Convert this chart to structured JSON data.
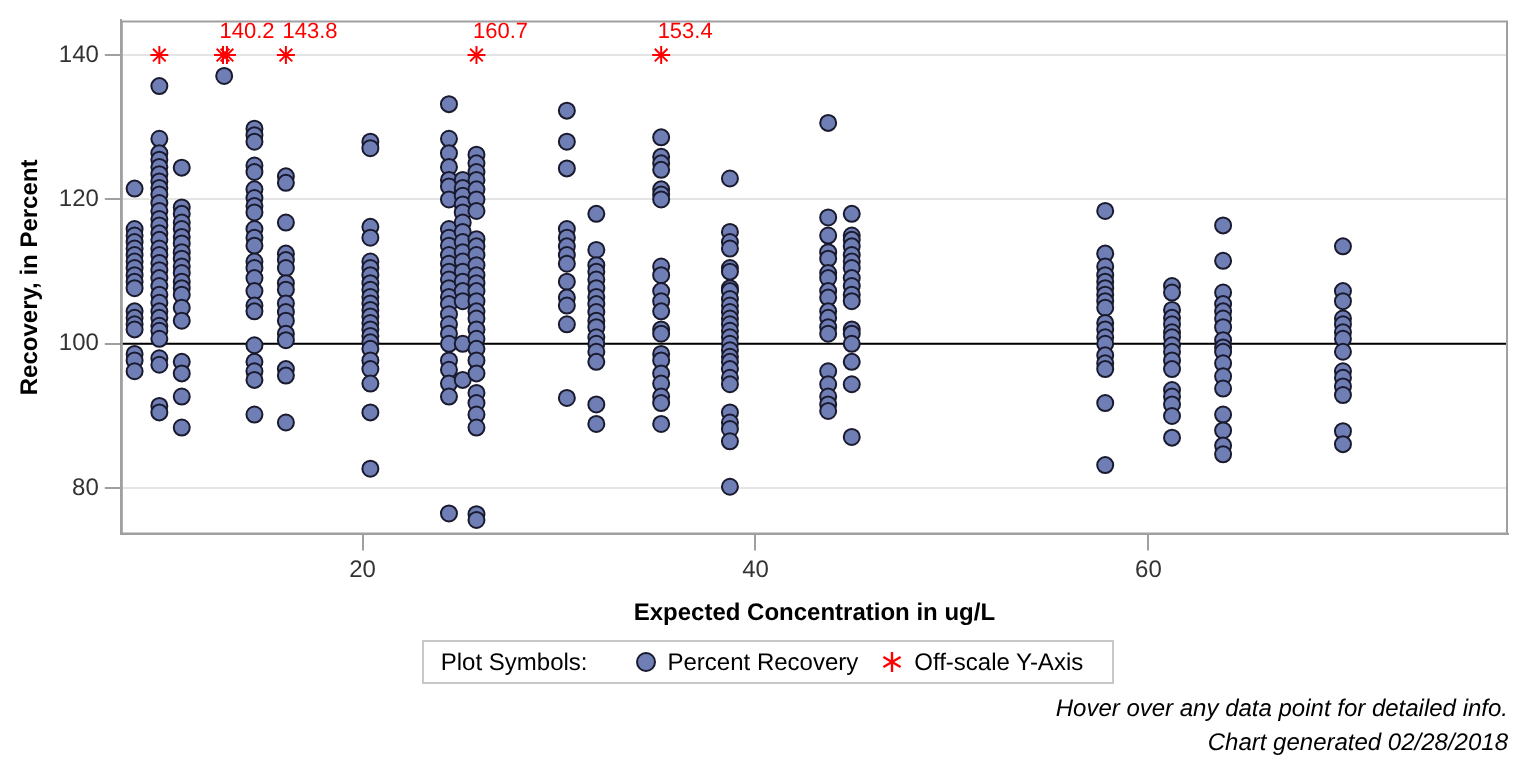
{
  "chart_data": {
    "type": "scatter",
    "xlabel": "Expected Concentration in ug/L",
    "ylabel": "Recovery, in Percent",
    "legend_title": "Plot Symbols:",
    "legend": "bottom",
    "grid": "y",
    "marker": "circle",
    "xlim": [
      7.7,
      78.3
    ],
    "xticks": [
      20,
      40,
      60
    ],
    "ylim": [
      73.6,
      144.8
    ],
    "yticks": [
      80,
      100,
      120,
      140
    ],
    "ref_lines": [
      {
        "axis": "y",
        "value": 100,
        "color": "#000000"
      }
    ],
    "series": [
      {
        "name": "Percent Recovery",
        "color": "#6f7fb5",
        "x": [
          8.4,
          8.4,
          8.4,
          8.4,
          8.4,
          8.4,
          8.4,
          8.4,
          8.4,
          8.4,
          8.4,
          8.4,
          8.4,
          8.4,
          8.4,
          8.4,
          8.4,
          8.4,
          9.66,
          9.66,
          9.66,
          9.66,
          9.66,
          9.66,
          9.66,
          9.66,
          9.66,
          9.66,
          9.66,
          9.66,
          9.66,
          9.66,
          9.66,
          9.66,
          9.66,
          9.66,
          9.66,
          9.66,
          9.66,
          9.66,
          9.66,
          9.66,
          9.66,
          9.66,
          9.66,
          9.66,
          9.66,
          9.66,
          9.66,
          9.66,
          10.8,
          10.8,
          10.8,
          10.8,
          10.8,
          10.8,
          10.8,
          10.8,
          10.8,
          10.8,
          10.8,
          10.8,
          10.8,
          10.8,
          10.8,
          10.8,
          10.8,
          10.8,
          10.8,
          10.8,
          12.96,
          14.5,
          14.5,
          14.5,
          14.5,
          14.5,
          14.5,
          14.5,
          14.5,
          14.5,
          14.5,
          14.5,
          14.5,
          14.5,
          14.5,
          14.5,
          14.5,
          14.5,
          14.5,
          14.5,
          14.5,
          14.5,
          14.5,
          14.5,
          16.1,
          16.1,
          16.1,
          16.1,
          16.1,
          16.1,
          16.1,
          16.1,
          16.1,
          16.1,
          16.1,
          16.1,
          16.1,
          16.1,
          16.1,
          16.1,
          20.4,
          20.4,
          20.4,
          20.4,
          20.4,
          20.4,
          20.4,
          20.4,
          20.4,
          20.4,
          20.4,
          20.4,
          20.4,
          20.4,
          20.4,
          20.4,
          20.4,
          20.4,
          20.4,
          20.4,
          20.4,
          20.4,
          20.4,
          24.4,
          24.4,
          24.4,
          24.4,
          24.4,
          24.4,
          24.4,
          24.4,
          24.4,
          24.4,
          24.4,
          24.4,
          24.4,
          24.4,
          24.4,
          24.4,
          24.4,
          24.4,
          24.4,
          24.4,
          24.4,
          24.4,
          24.4,
          24.4,
          24.4,
          24.4,
          25.1,
          25.1,
          25.1,
          25.1,
          25.1,
          25.1,
          25.1,
          25.1,
          25.1,
          25.1,
          25.1,
          25.1,
          25.1,
          25.1,
          25.1,
          25.1,
          25.8,
          25.8,
          25.8,
          25.8,
          25.8,
          25.8,
          25.8,
          25.8,
          25.8,
          25.8,
          25.8,
          25.8,
          25.8,
          25.8,
          25.8,
          25.8,
          25.8,
          25.8,
          25.8,
          25.8,
          25.8,
          25.8,
          25.8,
          25.8,
          25.8,
          25.8,
          25.8,
          25.8,
          30.4,
          30.4,
          30.4,
          30.4,
          30.4,
          30.4,
          30.4,
          30.4,
          30.4,
          30.4,
          30.4,
          30.4,
          30.4,
          31.9,
          31.9,
          31.9,
          31.9,
          31.9,
          31.9,
          31.9,
          31.9,
          31.9,
          31.9,
          31.9,
          31.9,
          31.9,
          31.9,
          31.9,
          31.9,
          31.9,
          35.2,
          35.2,
          35.2,
          35.2,
          35.2,
          35.2,
          35.2,
          35.2,
          35.2,
          35.2,
          35.2,
          35.2,
          35.2,
          35.2,
          35.2,
          35.2,
          35.2,
          35.2,
          35.2,
          35.2,
          35.2,
          38.7,
          38.7,
          38.7,
          38.7,
          38.7,
          38.7,
          38.7,
          38.7,
          38.7,
          38.7,
          38.7,
          38.7,
          38.7,
          38.7,
          38.7,
          38.7,
          38.7,
          38.7,
          38.7,
          38.7,
          38.7,
          38.7,
          38.7,
          38.7,
          38.7,
          38.7,
          38.7,
          43.7,
          43.7,
          43.7,
          43.7,
          43.7,
          43.7,
          43.7,
          43.7,
          43.7,
          43.7,
          43.7,
          43.7,
          43.7,
          43.7,
          43.7,
          43.7,
          43.7,
          43.7,
          44.9,
          44.9,
          44.9,
          44.9,
          44.9,
          44.9,
          44.9,
          44.9,
          44.9,
          44.9,
          44.9,
          44.9,
          44.9,
          44.9,
          44.9,
          44.9,
          44.9,
          57.8,
          57.8,
          57.8,
          57.8,
          57.8,
          57.8,
          57.8,
          57.8,
          57.8,
          57.8,
          57.8,
          57.8,
          57.8,
          57.8,
          57.8,
          57.8,
          57.8,
          57.8,
          61.2,
          61.2,
          61.2,
          61.2,
          61.2,
          61.2,
          61.2,
          61.2,
          61.2,
          61.2,
          61.2,
          61.2,
          61.2,
          61.2,
          61.2,
          61.2,
          63.8,
          63.8,
          63.8,
          63.8,
          63.8,
          63.8,
          63.8,
          63.8,
          63.8,
          63.8,
          63.8,
          63.8,
          63.8,
          63.8,
          63.8,
          63.8,
          63.8,
          69.9,
          69.9,
          69.9,
          69.9,
          69.9,
          69.9,
          69.9,
          69.9,
          69.9,
          69.9,
          69.9,
          69.9,
          69.9,
          69.9
        ],
        "values": [
          121.5,
          115.9,
          115,
          114.1,
          113.2,
          112.3,
          111.4,
          110.5,
          109.5,
          108.6,
          107.7,
          104.5,
          103.6,
          102.7,
          102,
          98.6,
          97.7,
          96.2,
          135.7,
          128.4,
          126.4,
          125.5,
          124.5,
          123.5,
          122.5,
          121.6,
          120.7,
          119.5,
          118.4,
          117.3,
          116.4,
          115.3,
          114.4,
          113.2,
          112.3,
          111.2,
          110.2,
          109.1,
          108,
          106.8,
          105.7,
          104.5,
          103.6,
          102.5,
          101.8,
          100.7,
          98,
          97.1,
          91.4,
          90.5,
          124.4,
          118.9,
          118,
          116.8,
          115.9,
          114.8,
          113.9,
          112.7,
          111.8,
          110.7,
          109.8,
          108.6,
          107.7,
          106.8,
          105,
          103.2,
          97.5,
          95.9,
          92.7,
          88.4,
          137.1,
          129.8,
          128.9,
          128,
          124.7,
          123.8,
          121.4,
          120.2,
          119.1,
          118.2,
          115.9,
          114.7,
          113.6,
          111.4,
          110.5,
          109.1,
          107.3,
          105.3,
          104.5,
          99.8,
          97.5,
          96.2,
          95,
          90.2,
          123.2,
          122.3,
          116.8,
          112.5,
          111.6,
          110.5,
          108.4,
          107.5,
          105.6,
          104.4,
          103.2,
          101.4,
          100.5,
          96.5,
          95.6,
          89.1,
          128,
          127.1,
          116.2,
          114.7,
          111.4,
          110.5,
          109.5,
          108.4,
          107.5,
          106.5,
          105.6,
          104.7,
          103.8,
          102.9,
          102,
          101.1,
          100.2,
          99.3,
          97.7,
          96.5,
          94.5,
          90.5,
          82.7,
          133.2,
          128.4,
          126.4,
          124.5,
          122.7,
          121.8,
          120,
          115.9,
          114.7,
          113.6,
          112.3,
          111.1,
          110,
          108.9,
          107.7,
          106.5,
          105.5,
          104.1,
          102.7,
          101.4,
          100,
          97.7,
          96.4,
          94.5,
          92.7,
          76.5,
          122.7,
          121.6,
          120.5,
          119.3,
          118.2,
          116.8,
          115.5,
          114.1,
          112.7,
          111.4,
          110,
          108.6,
          107.3,
          105.9,
          100,
          95,
          126.2,
          125,
          123.8,
          122.7,
          121.4,
          120,
          118.4,
          114.5,
          113.5,
          112.3,
          110.9,
          109.5,
          108.4,
          107.3,
          105.9,
          104.5,
          103.5,
          102,
          100.7,
          99.3,
          97.7,
          95.9,
          93.2,
          91.8,
          90.2,
          88.4,
          76.4,
          75.6,
          132.3,
          128,
          124.3,
          115.9,
          114.7,
          113.5,
          112.3,
          111.1,
          108.6,
          106.4,
          105.3,
          102.7,
          92.5,
          118,
          113,
          110.9,
          110,
          108.9,
          107.7,
          106.5,
          105.5,
          104.4,
          103.2,
          102.3,
          100.9,
          100,
          98.9,
          97.5,
          91.6,
          88.9,
          128.6,
          125.9,
          125,
          124.1,
          121.4,
          120.7,
          120,
          110.7,
          109.5,
          107.3,
          105.9,
          104.5,
          102,
          101.4,
          98.6,
          97.7,
          95.9,
          94.5,
          92.7,
          91.8,
          88.9,
          122.9,
          115.5,
          114.1,
          113.2,
          110.5,
          110,
          107.7,
          107.3,
          106.2,
          105.3,
          104.4,
          103.5,
          102.7,
          101.8,
          100.9,
          100,
          99.1,
          98.2,
          97.5,
          96.5,
          95.3,
          94.4,
          90.5,
          89.1,
          88.2,
          86.5,
          80.2,
          130.6,
          117.5,
          115,
          112.7,
          111.8,
          109.8,
          109.1,
          107.3,
          106.4,
          104.5,
          103.6,
          102.3,
          101.4,
          96.2,
          94.4,
          92.7,
          91.6,
          90.7,
          118,
          115,
          114.4,
          113.5,
          112.3,
          111.4,
          110.5,
          109.1,
          108,
          106.8,
          105.9,
          102,
          101.4,
          100,
          97.5,
          94.4,
          87.1,
          118.4,
          112.5,
          110.7,
          109.5,
          108.6,
          107.7,
          106.8,
          105.9,
          105,
          102.9,
          102,
          100.9,
          100,
          98.4,
          97.3,
          96.5,
          91.8,
          83.2,
          108,
          107.1,
          104.7,
          103.6,
          102.7,
          101.6,
          100.9,
          99.8,
          98.9,
          97.7,
          96.5,
          93.6,
          92.7,
          91.6,
          90,
          87,
          116.4,
          111.5,
          107.1,
          105.5,
          104.5,
          103.5,
          102.3,
          100.5,
          99.5,
          98.9,
          97.3,
          95.5,
          93.8,
          90.2,
          88,
          85.9,
          84.7,
          113.5,
          107.3,
          105.9,
          103.5,
          102.7,
          101.6,
          100.7,
          98.9,
          96.2,
          95.3,
          94.1,
          92.9,
          87.9,
          86.1
        ]
      },
      {
        "name": "Off-scale Y-Axis",
        "color": "#ff0000",
        "marker": "cross",
        "x": [
          9.66,
          12.9,
          13.1,
          16.1,
          25.8,
          35.2
        ],
        "values": [
          140,
          140,
          140,
          140,
          140,
          140
        ]
      }
    ],
    "annotations": [
      {
        "text": "140.2",
        "x": 12.9,
        "y": 140
      },
      {
        "text": "143.8",
        "x": 16.1,
        "y": 140
      },
      {
        "text": "160.7",
        "x": 25.8,
        "y": 140
      },
      {
        "text": "153.4",
        "x": 35.2,
        "y": 140
      },
      "Hover over any data point for detailed info.",
      "Chart generated 02/28/2018"
    ]
  }
}
